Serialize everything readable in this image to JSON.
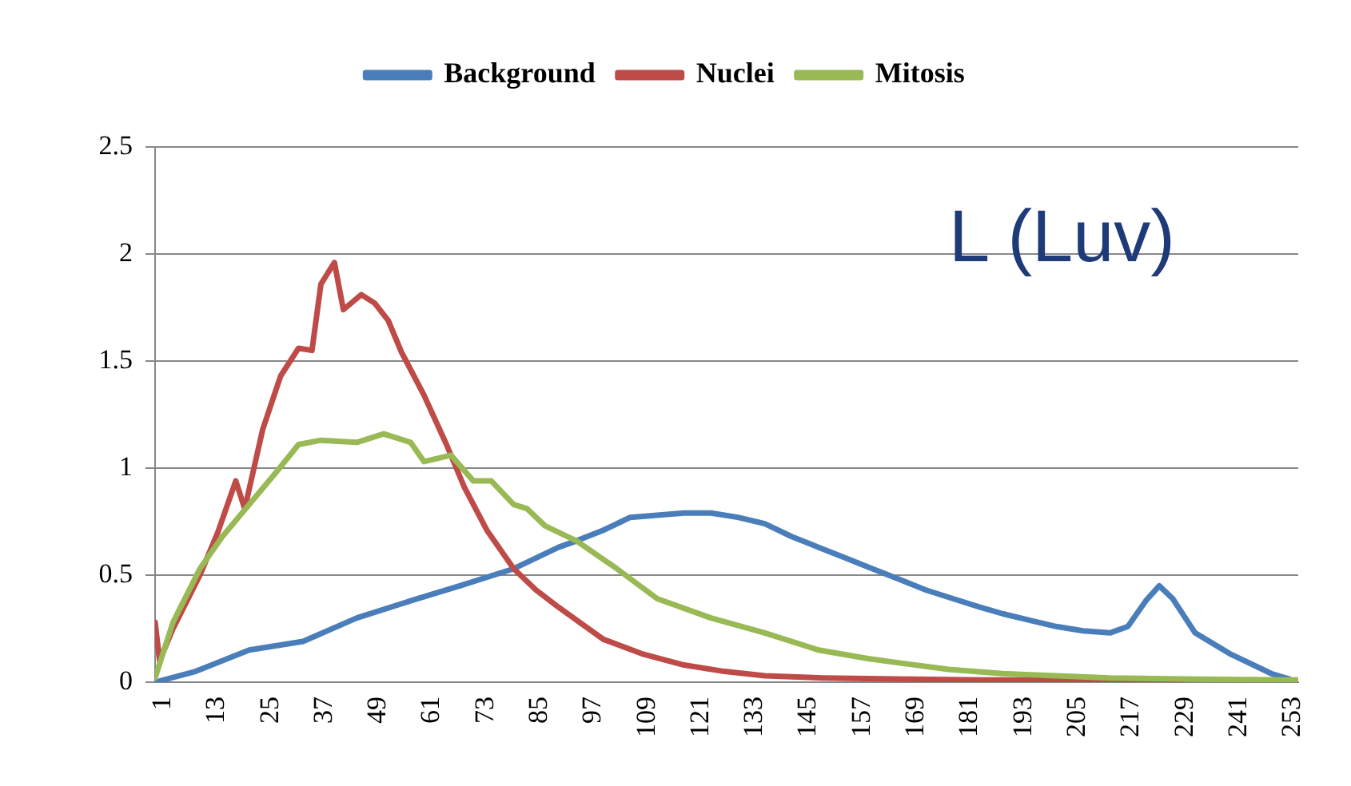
{
  "chart_data": {
    "type": "line",
    "annotations": [
      "L (Luv)"
    ],
    "xlim": [
      1,
      256
    ],
    "xticks": [
      1,
      13,
      25,
      37,
      49,
      61,
      73,
      85,
      97,
      109,
      121,
      133,
      145,
      157,
      169,
      181,
      193,
      205,
      217,
      229,
      241,
      253
    ],
    "ylim": [
      0,
      2.5
    ],
    "yticks": [
      0,
      0.5,
      1,
      1.5,
      2,
      2.5
    ],
    "grid": "y",
    "legend": "top",
    "marker": "none",
    "line_style": "solid",
    "series": [
      {
        "name": "Background",
        "color": "#4a7ebb",
        "x": [
          1,
          10,
          22,
          34,
          46,
          58,
          69,
          81,
          91,
          95,
          101,
          105,
          107,
          113,
          119,
          125,
          131,
          137,
          143,
          149,
          155,
          161,
          167,
          173,
          179,
          185,
          190,
          196,
          202,
          208,
          214,
          218,
          222,
          225,
          228,
          233,
          241,
          250,
          254
        ],
        "values": [
          0,
          0.05,
          0.15,
          0.19,
          0.3,
          0.38,
          0.45,
          0.53,
          0.63,
          0.66,
          0.71,
          0.75,
          0.77,
          0.78,
          0.79,
          0.79,
          0.77,
          0.74,
          0.68,
          0.63,
          0.58,
          0.53,
          0.48,
          0.43,
          0.39,
          0.35,
          0.32,
          0.29,
          0.26,
          0.24,
          0.23,
          0.26,
          0.38,
          0.45,
          0.39,
          0.23,
          0.13,
          0.04,
          0.015
        ]
      },
      {
        "name": "Nuclei",
        "color": "#be4b48",
        "x": [
          1,
          2,
          5,
          11,
          15,
          19,
          21,
          25,
          29,
          33,
          36,
          38,
          41,
          43,
          47,
          50,
          53,
          56,
          61,
          66,
          70,
          75,
          81,
          86,
          91,
          101,
          110,
          119,
          128,
          137,
          150,
          166,
          185,
          202,
          230
        ],
        "values": [
          0.28,
          0.1,
          0.25,
          0.5,
          0.7,
          0.94,
          0.81,
          1.18,
          1.43,
          1.56,
          1.55,
          1.86,
          1.96,
          1.74,
          1.81,
          1.77,
          1.69,
          1.54,
          1.34,
          1.11,
          0.91,
          0.71,
          0.53,
          0.43,
          0.35,
          0.2,
          0.13,
          0.08,
          0.05,
          0.03,
          0.02,
          0.015,
          0.01,
          0.01,
          0.005
        ]
      },
      {
        "name": "Mitosis",
        "color": "#98b954",
        "x": [
          1,
          5,
          11,
          16,
          22,
          28,
          33,
          38,
          46,
          52,
          58,
          61,
          67,
          72,
          76,
          81,
          84,
          88,
          95,
          104,
          113,
          125,
          137,
          149,
          160,
          167,
          178,
          190,
          202,
          214,
          230,
          254,
          256
        ],
        "values": [
          0.02,
          0.28,
          0.53,
          0.68,
          0.83,
          0.98,
          1.11,
          1.13,
          1.12,
          1.16,
          1.12,
          1.03,
          1.06,
          0.94,
          0.94,
          0.83,
          0.81,
          0.73,
          0.66,
          0.53,
          0.39,
          0.3,
          0.23,
          0.15,
          0.11,
          0.09,
          0.06,
          0.04,
          0.03,
          0.02,
          0.015,
          0.01,
          0.01
        ]
      }
    ]
  }
}
